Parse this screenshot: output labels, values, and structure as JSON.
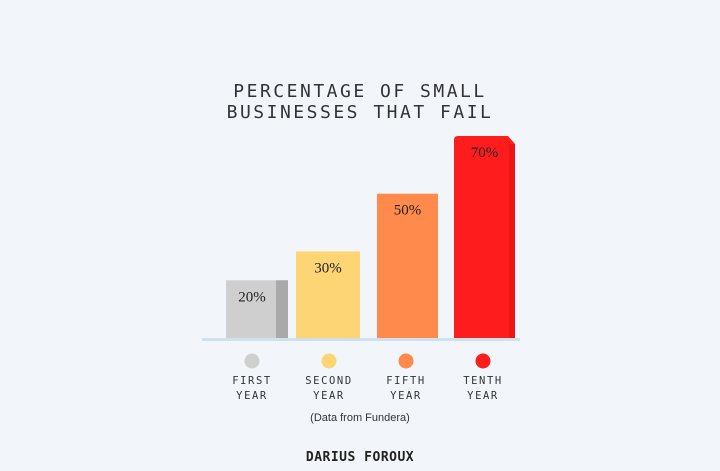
{
  "chart_data": {
    "type": "bar",
    "title_lines": [
      "PERCENTAGE OF SMALL",
      "BUSINESSES THAT FAIL"
    ],
    "categories": [
      {
        "lines": [
          "FIRST",
          "YEAR"
        ]
      },
      {
        "lines": [
          "SECOND",
          "YEAR"
        ]
      },
      {
        "lines": [
          "FIFTH",
          "YEAR"
        ]
      },
      {
        "lines": [
          "TENTH",
          "YEAR"
        ]
      }
    ],
    "values": [
      20,
      30,
      50,
      70
    ],
    "value_labels": [
      "20%",
      "30%",
      "50%",
      "70%"
    ],
    "colors": [
      "#cfcfcf",
      "#fdd575",
      "#ff8a4b",
      "#ff1c1c"
    ],
    "shade_colors": [
      "#a9a9a9",
      "#f6c55c",
      "#f07a3a",
      "#e01010"
    ],
    "baseline_color": "#cfe0ef",
    "ylim": [
      0,
      70
    ],
    "source": "(Data from Fundera)",
    "brand": "DARIUS FOROUX"
  }
}
